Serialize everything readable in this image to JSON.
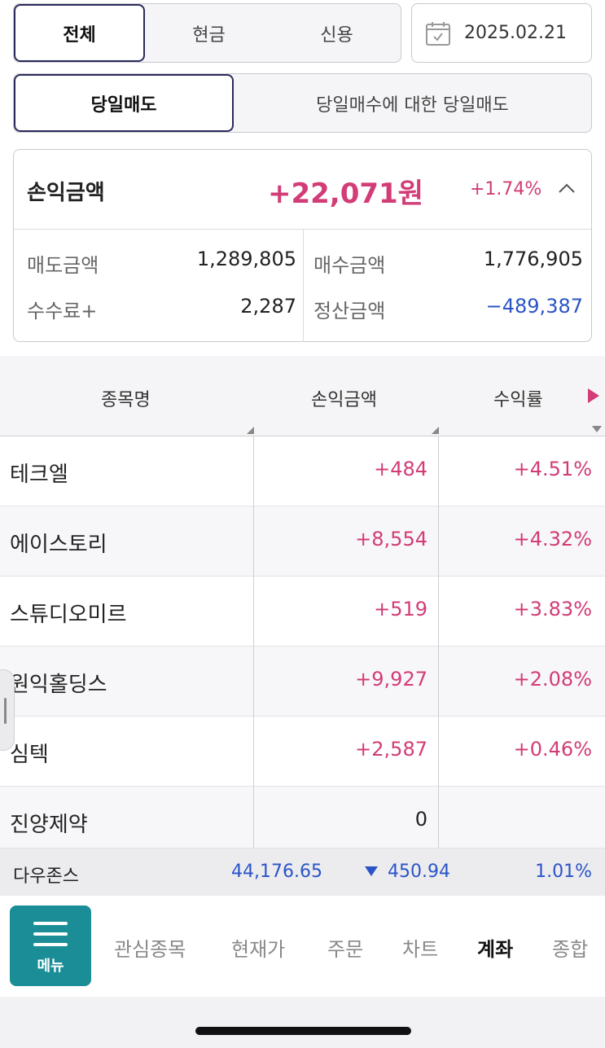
{
  "filter_tabs": [
    {
      "label": "전체",
      "active": true
    },
    {
      "label": "현금",
      "active": false
    },
    {
      "label": "신용",
      "active": false
    }
  ],
  "date": {
    "value": "2025.02.21",
    "icon": "calendar-icon"
  },
  "sell_tabs": [
    {
      "label": "당일매도",
      "active": true
    },
    {
      "label": "당일매수에 대한 당일매도",
      "active": false
    }
  ],
  "summary": {
    "label": "손익금액",
    "amount": "+22,071원",
    "rate": "+1.74%",
    "sell_amount_label": "매도금액",
    "sell_amount": "1,289,805",
    "buy_amount_label": "매수금액",
    "buy_amount": "1,776,905",
    "fee_label": "수수료+",
    "fee": "2,287",
    "settle_label": "정산금액",
    "settle": "−489,387"
  },
  "table": {
    "headers": [
      "종목명",
      "손익금액",
      "수익률"
    ],
    "rows": [
      {
        "name": "테크엘",
        "pl": "+484",
        "rate": "+4.51%"
      },
      {
        "name": "에이스토리",
        "pl": "+8,554",
        "rate": "+4.32%"
      },
      {
        "name": "스튜디오미르",
        "pl": "+519",
        "rate": "+3.83%"
      },
      {
        "name": "원익홀딩스",
        "pl": "+9,927",
        "rate": "+2.08%"
      },
      {
        "name": "심텍",
        "pl": "+2,587",
        "rate": "+0.46%"
      },
      {
        "name": "진양제약",
        "pl": "0",
        "rate": ""
      }
    ]
  },
  "ticker": {
    "name": "다우존스",
    "value": "44,176.65",
    "change": "450.94",
    "rate": "1.01%"
  },
  "nav": {
    "menu_label": "메뉴",
    "items": [
      "관심종목",
      "현재가",
      "주문",
      "차트",
      "계좌",
      "종합"
    ],
    "active": "계좌"
  },
  "colors": {
    "positive": "#d23c77",
    "negative": "#2b55c7",
    "accent": "#1a8d96",
    "tab_border": "#2a2a5c"
  }
}
